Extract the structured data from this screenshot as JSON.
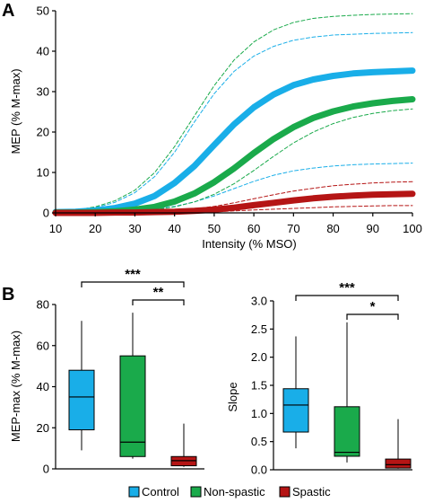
{
  "panel_labels": {
    "a": "A",
    "b": "B"
  },
  "colors": {
    "control": "#19aee8",
    "nonspastic": "#1aaa4b",
    "spastic": "#b51515",
    "axis": "#000000"
  },
  "chart_data": [
    {
      "id": "A",
      "type": "line",
      "xlabel": "Intensity (% MSO)",
      "ylabel": "MEP (% M-max)",
      "xlim": [
        10,
        100
      ],
      "ylim": [
        0,
        50
      ],
      "xticks": [
        "10",
        "20",
        "30",
        "40",
        "50",
        "60",
        "70",
        "80",
        "90",
        "100"
      ],
      "yticks": [
        "0",
        "10",
        "20",
        "30",
        "40",
        "50"
      ],
      "series": [
        {
          "key": "control",
          "color": "#19aee8",
          "x": [
            10,
            15,
            20,
            25,
            30,
            35,
            40,
            45,
            50,
            55,
            60,
            65,
            70,
            75,
            80,
            85,
            90,
            95,
            100
          ],
          "y": [
            0.2,
            0.3,
            0.6,
            1.2,
            2.3,
            4.2,
            7.4,
            11.6,
            16.8,
            21.9,
            26.1,
            29.3,
            31.6,
            33,
            33.9,
            34.5,
            34.8,
            35,
            35.2
          ]
        },
        {
          "key": "control_ci_upper",
          "color": "#19aee8",
          "dashed": true,
          "x": [
            10,
            15,
            20,
            25,
            30,
            35,
            40,
            45,
            50,
            55,
            60,
            65,
            70,
            75,
            80,
            85,
            90,
            95,
            100
          ],
          "y": [
            0.3,
            0.6,
            1.3,
            2.6,
            5,
            9,
            15,
            22.5,
            29.5,
            35,
            38.8,
            41.2,
            42.7,
            43.5,
            44,
            44.2,
            44.4,
            44.5,
            44.6
          ]
        },
        {
          "key": "control_ci_lower",
          "color": "#19aee8",
          "dashed": true,
          "x": [
            10,
            15,
            20,
            25,
            30,
            35,
            40,
            45,
            50,
            55,
            60,
            65,
            70,
            75,
            80,
            85,
            90,
            95,
            100
          ],
          "y": [
            0.1,
            0.1,
            0.2,
            0.3,
            0.5,
            0.9,
            1.6,
            2.7,
            4.2,
            6,
            7.8,
            9.3,
            10.4,
            11.1,
            11.6,
            11.9,
            12.1,
            12.2,
            12.3
          ]
        },
        {
          "key": "nonspastic",
          "color": "#1aaa4b",
          "x": [
            10,
            15,
            20,
            25,
            30,
            35,
            40,
            45,
            50,
            55,
            60,
            65,
            70,
            75,
            80,
            85,
            90,
            95,
            100
          ],
          "y": [
            0.1,
            0.1,
            0.2,
            0.4,
            0.8,
            1.5,
            2.8,
            4.8,
            7.6,
            11,
            14.8,
            18.3,
            21.2,
            23.5,
            25.1,
            26.3,
            27.1,
            27.7,
            28.1
          ]
        },
        {
          "key": "nonspastic_ci_upper",
          "color": "#1aaa4b",
          "dashed": true,
          "x": [
            10,
            15,
            20,
            25,
            30,
            35,
            40,
            45,
            50,
            55,
            60,
            65,
            70,
            75,
            80,
            85,
            90,
            95,
            100
          ],
          "y": [
            0.3,
            0.7,
            1.5,
            3,
            5.6,
            10,
            16.4,
            24,
            31.5,
            37.8,
            42.3,
            45.3,
            47.1,
            48.1,
            48.6,
            48.9,
            49.1,
            49.2,
            49.3
          ]
        },
        {
          "key": "nonspastic_ci_lower",
          "color": "#1aaa4b",
          "dashed": true,
          "x": [
            10,
            15,
            20,
            25,
            30,
            35,
            40,
            45,
            50,
            55,
            60,
            65,
            70,
            75,
            80,
            85,
            90,
            95,
            100
          ],
          "y": [
            0,
            0,
            0.1,
            0.2,
            0.4,
            0.8,
            1.5,
            2.7,
            4.6,
            7.2,
            10.5,
            14,
            17.3,
            20,
            22.1,
            23.6,
            24.6,
            25.3,
            25.7
          ]
        },
        {
          "key": "spastic",
          "color": "#b51515",
          "x": [
            10,
            15,
            20,
            25,
            30,
            35,
            40,
            45,
            50,
            55,
            60,
            65,
            70,
            75,
            80,
            85,
            90,
            95,
            100
          ],
          "y": [
            0,
            0,
            0,
            0.1,
            0.1,
            0.2,
            0.3,
            0.5,
            0.8,
            1.3,
            1.9,
            2.5,
            3.1,
            3.6,
            4,
            4.3,
            4.5,
            4.6,
            4.7
          ]
        },
        {
          "key": "spastic_ci_upper",
          "color": "#b51515",
          "dashed": true,
          "x": [
            10,
            15,
            20,
            25,
            30,
            35,
            40,
            45,
            50,
            55,
            60,
            65,
            70,
            75,
            80,
            85,
            90,
            95,
            100
          ],
          "y": [
            0,
            0,
            0.1,
            0.1,
            0.2,
            0.3,
            0.6,
            1,
            1.6,
            2.5,
            3.5,
            4.5,
            5.4,
            6.1,
            6.7,
            7.1,
            7.4,
            7.6,
            7.7
          ]
        },
        {
          "key": "spastic_ci_lower",
          "color": "#b51515",
          "dashed": true,
          "x": [
            10,
            15,
            20,
            25,
            30,
            35,
            40,
            45,
            50,
            55,
            60,
            65,
            70,
            75,
            80,
            85,
            90,
            95,
            100
          ],
          "y": [
            0,
            0,
            0,
            0,
            0,
            0.1,
            0.1,
            0.2,
            0.3,
            0.5,
            0.7,
            0.9,
            1.1,
            1.3,
            1.5,
            1.6,
            1.7,
            1.8,
            1.8
          ]
        }
      ]
    },
    {
      "id": "B-left",
      "type": "box",
      "ylabel": "MEP-max (% M-max)",
      "ylim": [
        0,
        80
      ],
      "yticks": [
        "0",
        "20",
        "40",
        "60",
        "80"
      ],
      "groups": [
        {
          "key": "control",
          "color": "#19aee8",
          "whisker_low": 9,
          "q1": 19,
          "median": 35,
          "q3": 48,
          "whisker_high": 72
        },
        {
          "key": "nonspastic",
          "color": "#1aaa4b",
          "whisker_low": 5,
          "q1": 6,
          "median": 13,
          "q3": 55,
          "whisker_high": 76
        },
        {
          "key": "spastic",
          "color": "#b51515",
          "whisker_low": 1,
          "q1": 1.5,
          "median": 4,
          "q3": 6,
          "whisker_high": 22
        }
      ],
      "significance": [
        {
          "from": 0,
          "to": 2,
          "label": "***"
        },
        {
          "from": 1,
          "to": 2,
          "label": "**"
        }
      ]
    },
    {
      "id": "B-right",
      "type": "box",
      "ylabel": "Slope",
      "ylim": [
        0,
        3
      ],
      "yticks": [
        "0.0",
        "0.5",
        "1.0",
        "1.5",
        "2.0",
        "2.5",
        "3.0"
      ],
      "groups": [
        {
          "key": "control",
          "color": "#19aee8",
          "whisker_low": 0.38,
          "q1": 0.67,
          "median": 1.15,
          "q3": 1.44,
          "whisker_high": 2.37
        },
        {
          "key": "nonspastic",
          "color": "#1aaa4b",
          "whisker_low": 0.13,
          "q1": 0.24,
          "median": 0.31,
          "q3": 1.12,
          "whisker_high": 2.62
        },
        {
          "key": "spastic",
          "color": "#b51515",
          "whisker_low": 0.02,
          "q1": 0.03,
          "median": 0.09,
          "q3": 0.19,
          "whisker_high": 0.9
        }
      ],
      "significance": [
        {
          "from": 0,
          "to": 2,
          "label": "***"
        },
        {
          "from": 1,
          "to": 2,
          "label": "*"
        }
      ]
    }
  ],
  "legend": {
    "placement": "bottom",
    "items": [
      {
        "key": "control",
        "label": "Control",
        "color": "#19aee8"
      },
      {
        "key": "nonspastic",
        "label": "Non-spastic",
        "color": "#1aaa4b"
      },
      {
        "key": "spastic",
        "label": "Spastic",
        "color": "#b51515"
      }
    ]
  }
}
